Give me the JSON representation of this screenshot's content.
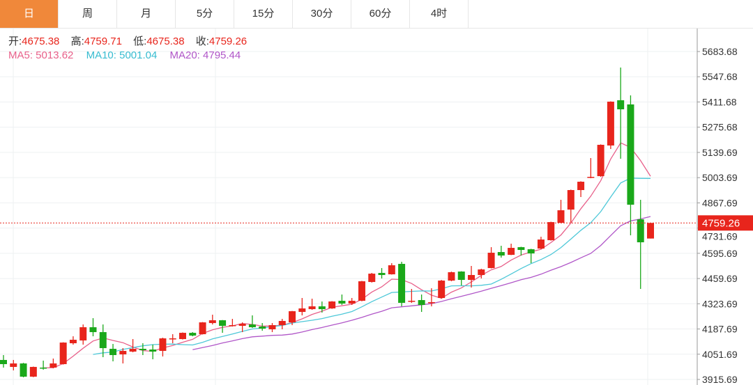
{
  "tabs": [
    {
      "label": "日",
      "active": true
    },
    {
      "label": "周"
    },
    {
      "label": "月"
    },
    {
      "label": "5分"
    },
    {
      "label": "15分"
    },
    {
      "label": "30分"
    },
    {
      "label": "60分"
    },
    {
      "label": "4时"
    }
  ],
  "legend": {
    "open_label": "开:",
    "open": "4675.38",
    "high_label": "高:",
    "high": "4759.71",
    "low_label": "低:",
    "low": "4675.38",
    "close_label": "收:",
    "close": "4759.26",
    "ma5": "MA5: 5013.62",
    "ma10": "MA10: 5001.04",
    "ma20": "MA20: 4795.44"
  },
  "colors": {
    "up": "#e8251c",
    "down": "#1aa81a",
    "ma5": "#e8608a",
    "ma10": "#4dc8d8",
    "ma20": "#b056c8",
    "accent": "#f0883a"
  },
  "chart_data": {
    "type": "candlestick",
    "ylim": [
      3915.69,
      5683.68
    ],
    "yticks": [
      "5683.68",
      "5547.68",
      "5411.68",
      "5275.68",
      "5139.69",
      "5003.69",
      "4867.69",
      "4731.69",
      "4595.69",
      "4459.69",
      "4323.69",
      "4187.69",
      "4051.69",
      "3915.69"
    ],
    "last_price": "4759.26",
    "grid": true,
    "moving_averages": [
      5,
      10,
      20
    ],
    "candles": [
      [
        4020.7,
        4047,
        3979.4,
        3998.2
      ],
      [
        3983.1,
        4020.7,
        3964.4,
        4001.9
      ],
      [
        4001.9,
        4005,
        3927,
        3930.6
      ],
      [
        3930.6,
        3985,
        3928,
        3983.1
      ],
      [
        3979.4,
        4017,
        3968.1,
        3975.6
      ],
      [
        3979.4,
        4028.2,
        3975.6,
        4001.9
      ],
      [
        3998.2,
        4116,
        3996,
        4114.5
      ],
      [
        4110.8,
        4148.3,
        4103.3,
        4129.6
      ],
      [
        4125.8,
        4212.1,
        4103.3,
        4197.1
      ],
      [
        4197.1,
        4246,
        4148.3,
        4170.8
      ],
      [
        4170.8,
        4212.1,
        4035.7,
        4084.5
      ],
      [
        4080.7,
        4107,
        4013.2,
        4047
      ],
      [
        4050.7,
        4084.5,
        4001.9,
        4069.5
      ],
      [
        4065.7,
        4133.3,
        4062,
        4080.7
      ],
      [
        4080.7,
        4110.8,
        4047,
        4073.2
      ],
      [
        4077,
        4103.3,
        4024.4,
        4065.7
      ],
      [
        4069.5,
        4140.8,
        4039.5,
        4137.1
      ],
      [
        4133.3,
        4159.6,
        4110.8,
        4137.1
      ],
      [
        4133.3,
        4169,
        4131,
        4167
      ],
      [
        4167,
        4170.8,
        4148.3,
        4152.1
      ],
      [
        4159.6,
        4225,
        4158,
        4223.4
      ],
      [
        4219.6,
        4264.7,
        4212.1,
        4234.7
      ],
      [
        4234.7,
        4236,
        4167,
        4204.6
      ],
      [
        4204.6,
        4242.2,
        4200.9,
        4208.4
      ],
      [
        4204.6,
        4223.4,
        4170.8,
        4215.9
      ],
      [
        4212.1,
        4261,
        4193.4,
        4197.1
      ],
      [
        4200.9,
        4219.6,
        4178.4,
        4189.6
      ],
      [
        4185.9,
        4219.6,
        4170.8,
        4208.4
      ],
      [
        4208.4,
        4242.2,
        4185.9,
        4230.9
      ],
      [
        4223.4,
        4285,
        4208.4,
        4283.5
      ],
      [
        4279.7,
        4354.8,
        4261,
        4298.5
      ],
      [
        4294.7,
        4351,
        4291,
        4309.7
      ],
      [
        4309.7,
        4336,
        4276,
        4294.7
      ],
      [
        4298.5,
        4338,
        4296,
        4336
      ],
      [
        4339.7,
        4373.5,
        4317.3,
        4324.8
      ],
      [
        4324.8,
        4354.8,
        4317.3,
        4339.7
      ],
      [
        4339.7,
        4447,
        4337,
        4444.9
      ],
      [
        4441.1,
        4490,
        4438,
        4486
      ],
      [
        4489.9,
        4516.2,
        4459.9,
        4478.7
      ],
      [
        4482.4,
        4542.5,
        4481,
        4531.2
      ],
      [
        4538.7,
        4550,
        4309.7,
        4328.5
      ],
      [
        4336,
        4403.6,
        4328.5,
        4339.7
      ],
      [
        4343.5,
        4373.5,
        4279.7,
        4317.3
      ],
      [
        4328.5,
        4407.3,
        4309.7,
        4332.3
      ],
      [
        4354.8,
        4452,
        4351,
        4448.6
      ],
      [
        4448.6,
        4497,
        4445,
        4493.7
      ],
      [
        4497.4,
        4499,
        4422.4,
        4452.4
      ],
      [
        4452.4,
        4527.5,
        4411.1,
        4478.7
      ],
      [
        4478.7,
        4512.4,
        4459.9,
        4508.7
      ],
      [
        4516.2,
        4628.8,
        4514,
        4598.8
      ],
      [
        4602.5,
        4636.3,
        4572.5,
        4583.8
      ],
      [
        4587.5,
        4647.6,
        4586,
        4625
      ],
      [
        4628.8,
        4631,
        4583.8,
        4613.8
      ],
      [
        4617.6,
        4620,
        4542.5,
        4595
      ],
      [
        4621.3,
        4685.1,
        4619,
        4670
      ],
      [
        4666.4,
        4766,
        4664,
        4763.9
      ],
      [
        4760.2,
        4884.1,
        4758,
        4827.8
      ],
      [
        4831.5,
        4939,
        4760.2,
        4936.7
      ],
      [
        4936.7,
        4984,
        4899.1,
        4981.7
      ],
      [
        5004.2,
        5109.3,
        5000.5,
        5008
      ],
      [
        5011.7,
        5183,
        5008,
        5180.7
      ],
      [
        5177,
        5415,
        5158.2,
        5413.4
      ],
      [
        5420.9,
        5597.4,
        5105.6,
        5372.1
      ],
      [
        5398.4,
        5447.2,
        4692.6,
        4857.8
      ],
      [
        4779,
        4884.1,
        4403.6,
        4655.1
      ],
      [
        4675.38,
        4759.71,
        4675.38,
        4759.26
      ]
    ]
  }
}
